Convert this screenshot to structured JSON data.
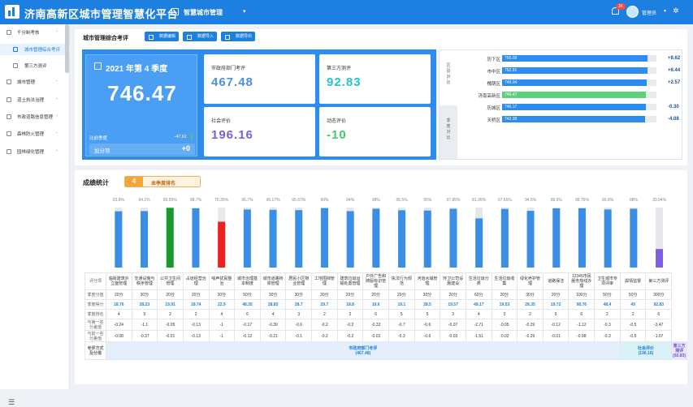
{
  "app": {
    "title": "济南高新区城市管理智慧化平台",
    "mode": "智慧城市管理",
    "notifications": "34",
    "user": "管理员"
  },
  "sidebar": {
    "items": [
      {
        "label": "千分制考核",
        "active": true
      },
      {
        "label": "城市管理综合考评",
        "sub": true,
        "active": true
      },
      {
        "label": "第三方测评",
        "sub": true
      },
      {
        "label": "城市管理"
      },
      {
        "label": "道土执法治理"
      },
      {
        "label": "市政道路信息管理"
      },
      {
        "label": "森林防火管理"
      },
      {
        "label": "园林绿化管理"
      }
    ]
  },
  "overview": {
    "title": "城市管理综合考评",
    "buttons": [
      "数据编辑",
      "数据导入",
      "数据导出"
    ],
    "period": "2021 年第 4 季度",
    "total": "746.47",
    "compare_label": "比前季度",
    "compare_value": "-47.61",
    "add_label": "加分项",
    "add_value": "+0",
    "cards": [
      {
        "label": "市政府部门考评",
        "value": "467.48",
        "color": "#4a90e2"
      },
      {
        "label": "第三方测评",
        "value": "92.83",
        "color": "#27c2c8"
      },
      {
        "label": "社会评价",
        "value": "196.16",
        "color": "#7b5fd6"
      },
      {
        "label": "动态评价",
        "value": "-10",
        "color": "#3ecb6a"
      }
    ]
  },
  "ranking": {
    "tabs": [
      "区县对比",
      "季度对比"
    ],
    "max": 800,
    "rows": [
      {
        "name": "历下区",
        "value": 755.09,
        "label": "755.09",
        "delta": "+8.62",
        "color": "#2d8cf0"
      },
      {
        "name": "市中区",
        "value": 752.91,
        "label": "752.91",
        "delta": "+6.44",
        "color": "#2d8cf0"
      },
      {
        "name": "槐荫区",
        "value": 749.04,
        "label": "749.04",
        "delta": "+2.57",
        "color": "#2d8cf0"
      },
      {
        "name": "济南高新区",
        "value": 746.47,
        "label": "746.47",
        "delta": "",
        "color": "#5fd07a"
      },
      {
        "name": "历城区",
        "value": 746.17,
        "label": "746.17",
        "delta": "-0.30",
        "color": "#2d8cf0"
      },
      {
        "name": "天桥区",
        "value": 742.39,
        "label": "742.39",
        "delta": "-4.08",
        "color": "#2d8cf0"
      }
    ]
  },
  "stats": {
    "title": "成绩统计",
    "rank": "4",
    "rank_label": "本季度排名",
    "row_headers": [
      "评分项",
      "季度分值",
      "季度得分",
      "季度排名",
      "与第一名分差值",
      "与前一名分差值",
      "考评方式及分值"
    ],
    "groups": [
      {
        "label": "市政府部门考评\n(467.48)",
        "span": 20,
        "cls": "g1"
      },
      {
        "label": "社会评价\n(196.16)",
        "span": 3,
        "cls": "g2"
      },
      {
        "label": "第三方测评\n(92.83)",
        "span": 1,
        "cls": "g3"
      }
    ]
  },
  "chart_data": {
    "type": "bar",
    "ylim": [
      0,
      100
    ],
    "categories": [
      "临街建筑外立面管理",
      "交通设施与秩序管理",
      "公共卫生间管理",
      "占道经营治理",
      "噪声扰民整治",
      "城市治理基本制度",
      "城市道路桥梁管理",
      "居民小区物业管理",
      "工地围挡管理",
      "建筑垃圾运输处置管理",
      "户外广告和牌匾标识管理",
      "执法行为规范",
      "河道水域管理",
      "环卫公司设施建设",
      "生活垃圾分类",
      "生活垃圾收集",
      "绿化养护管理",
      "道路保洁",
      "12345市民服务热线办理",
      "卫生城市专项评审",
      "舆情监督",
      "第三方测评"
    ],
    "values": [
      93.8,
      94.1,
      99.55,
      98.7,
      76.35,
      96.7,
      96.17,
      95.67,
      99,
      94,
      98,
      95.5,
      95,
      97.85,
      81.95,
      97.65,
      94.5,
      98.6,
      98.76,
      96.8,
      98,
      30.94
    ],
    "labels": [
      "93.8%",
      "94.1%",
      "99.55%",
      "98.7%",
      "76.35%",
      "96.7%",
      "96.17%",
      "95.67%",
      "99%",
      "94%",
      "98%",
      "95.5%",
      "95%",
      "97.85%",
      "81.95%",
      "97.65%",
      "94.5%",
      "98.6%",
      "98.76%",
      "96.8%",
      "98%",
      "30.94%"
    ],
    "colors": [
      "#3a8ee6",
      "#3a8ee6",
      "#1a9a2e",
      "#3a8ee6",
      "#f02020",
      "#3a8ee6",
      "#3a8ee6",
      "#3a8ee6",
      "#3a8ee6",
      "#3a8ee6",
      "#3a8ee6",
      "#3a8ee6",
      "#3a8ee6",
      "#3a8ee6",
      "#3a8ee6",
      "#3a8ee6",
      "#3a8ee6",
      "#3a8ee6",
      "#3a8ee6",
      "#3a8ee6",
      "#3a8ee6",
      "#7b5fe0"
    ],
    "quarter_points": [
      "20分",
      "30分",
      "20分",
      "20分",
      "30分",
      "50分",
      "30分",
      "30分",
      "30分",
      "20分",
      "20分",
      "20分",
      "30分",
      "20分",
      "60分",
      "20分",
      "30分",
      "20分",
      "100分",
      "50分",
      "50分",
      "300分"
    ],
    "quarter_scores": [
      "18.76",
      "28.23",
      "19.91",
      "19.74",
      "22.9",
      "48.35",
      "28.85",
      "28.7",
      "29.7",
      "18.8",
      "19.6",
      "19.1",
      "28.5",
      "19.57",
      "49.17",
      "19.53",
      "28.35",
      "19.72",
      "98.76",
      "48.4",
      "49",
      "92.83"
    ],
    "quarter_ranks": [
      "4",
      "5",
      "2",
      "2",
      "4",
      "6",
      "4",
      "3",
      "2",
      "2",
      "6",
      "5",
      "5",
      "3",
      "4",
      "3",
      "2",
      "5",
      "6",
      "2",
      "2",
      "6"
    ],
    "diff_first": [
      "-0.24",
      "-1.1",
      "-0.05",
      "-0.13",
      "-1",
      "-0.17",
      "-0.39",
      "-0.6",
      "-0.2",
      "-0.2",
      "-0.32",
      "-0.7",
      "-0.6",
      "-0.07",
      "-2.71",
      "-0.05",
      "-0.29",
      "-0.12",
      "-1.12",
      "-0.3",
      "-0.5",
      "-3.47"
    ],
    "diff_prev": [
      "-0.08",
      "-0.37",
      "-0.01",
      "-0.13",
      "-1",
      "-0.12",
      "-0.21",
      "-0.1",
      "-0.2",
      "-0.2",
      "-0.02",
      "-0.3",
      "-0.6",
      "-0.03",
      "-1.51",
      "-0.02",
      "-0.29",
      "-0.01",
      "-0.98",
      "-0.3",
      "-0.5",
      "-1.07"
    ]
  }
}
